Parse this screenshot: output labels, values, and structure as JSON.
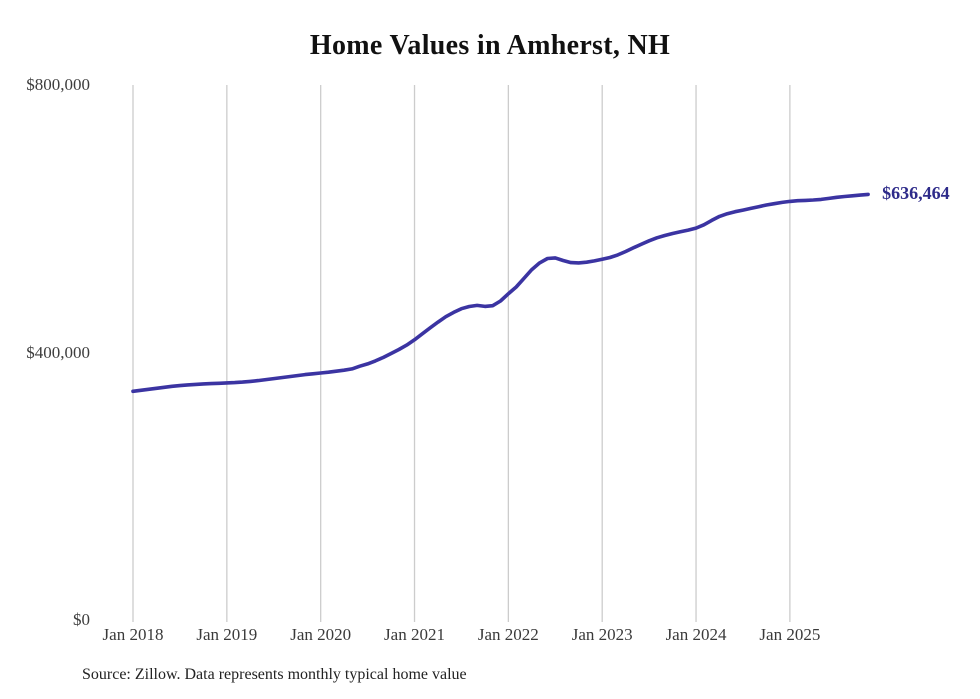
{
  "chart": {
    "title": "Home Values in Amherst, NH",
    "value_label": "$636,464",
    "source": "Source: Zillow. Data represents monthly typical home value"
  },
  "chart_data": {
    "type": "line",
    "title": "Home Values in Amherst, NH",
    "series_name": "Typical home value (USD)",
    "frequency": "monthly",
    "x_start": "Jan 2018",
    "x_end": "Nov 2025",
    "x_tick_labels": [
      "Jan 2018",
      "Jan 2019",
      "Jan 2020",
      "Jan 2021",
      "Jan 2022",
      "Jan 2023",
      "Jan 2024",
      "Jan 2025"
    ],
    "y_ticks": [
      {
        "label": "$0",
        "value": 0
      },
      {
        "label": "$400,000",
        "value": 400000
      },
      {
        "label": "$800,000",
        "value": 800000
      }
    ],
    "ylim": [
      0,
      800000
    ],
    "grid": "vertical-only",
    "legend": "none",
    "latest_value": 636464,
    "latest_value_label": "$636,464",
    "values": [
      342000,
      343500,
      345000,
      346500,
      348000,
      349500,
      350500,
      351500,
      352300,
      353000,
      353500,
      354000,
      354500,
      355000,
      355800,
      356800,
      358000,
      359500,
      361000,
      362500,
      364000,
      365500,
      367000,
      368200,
      369300,
      370500,
      372000,
      373500,
      375500,
      379500,
      383000,
      387500,
      392500,
      398500,
      404500,
      411000,
      419000,
      428000,
      437000,
      445500,
      453500,
      460000,
      465500,
      468800,
      470500,
      469000,
      470000,
      477000,
      488000,
      498000,
      511000,
      524000,
      534000,
      540500,
      541500,
      537500,
      534500,
      534000,
      535000,
      537000,
      539500,
      542000,
      546000,
      551000,
      556500,
      562000,
      567000,
      571500,
      575000,
      578000,
      580500,
      583000,
      586000,
      591000,
      597500,
      603500,
      607500,
      610500,
      613000,
      615500,
      618000,
      620500,
      622500,
      624500,
      626000,
      627000,
      627500,
      628000,
      629000,
      630500,
      632000,
      633200,
      634300,
      635400,
      636464
    ]
  },
  "colors": {
    "line": "#3b34a2",
    "value_label": "#2e2b8a",
    "gridline": "#cccccc",
    "title": "#111111",
    "axis_label": "#3a3a3a",
    "source": "#222222"
  }
}
